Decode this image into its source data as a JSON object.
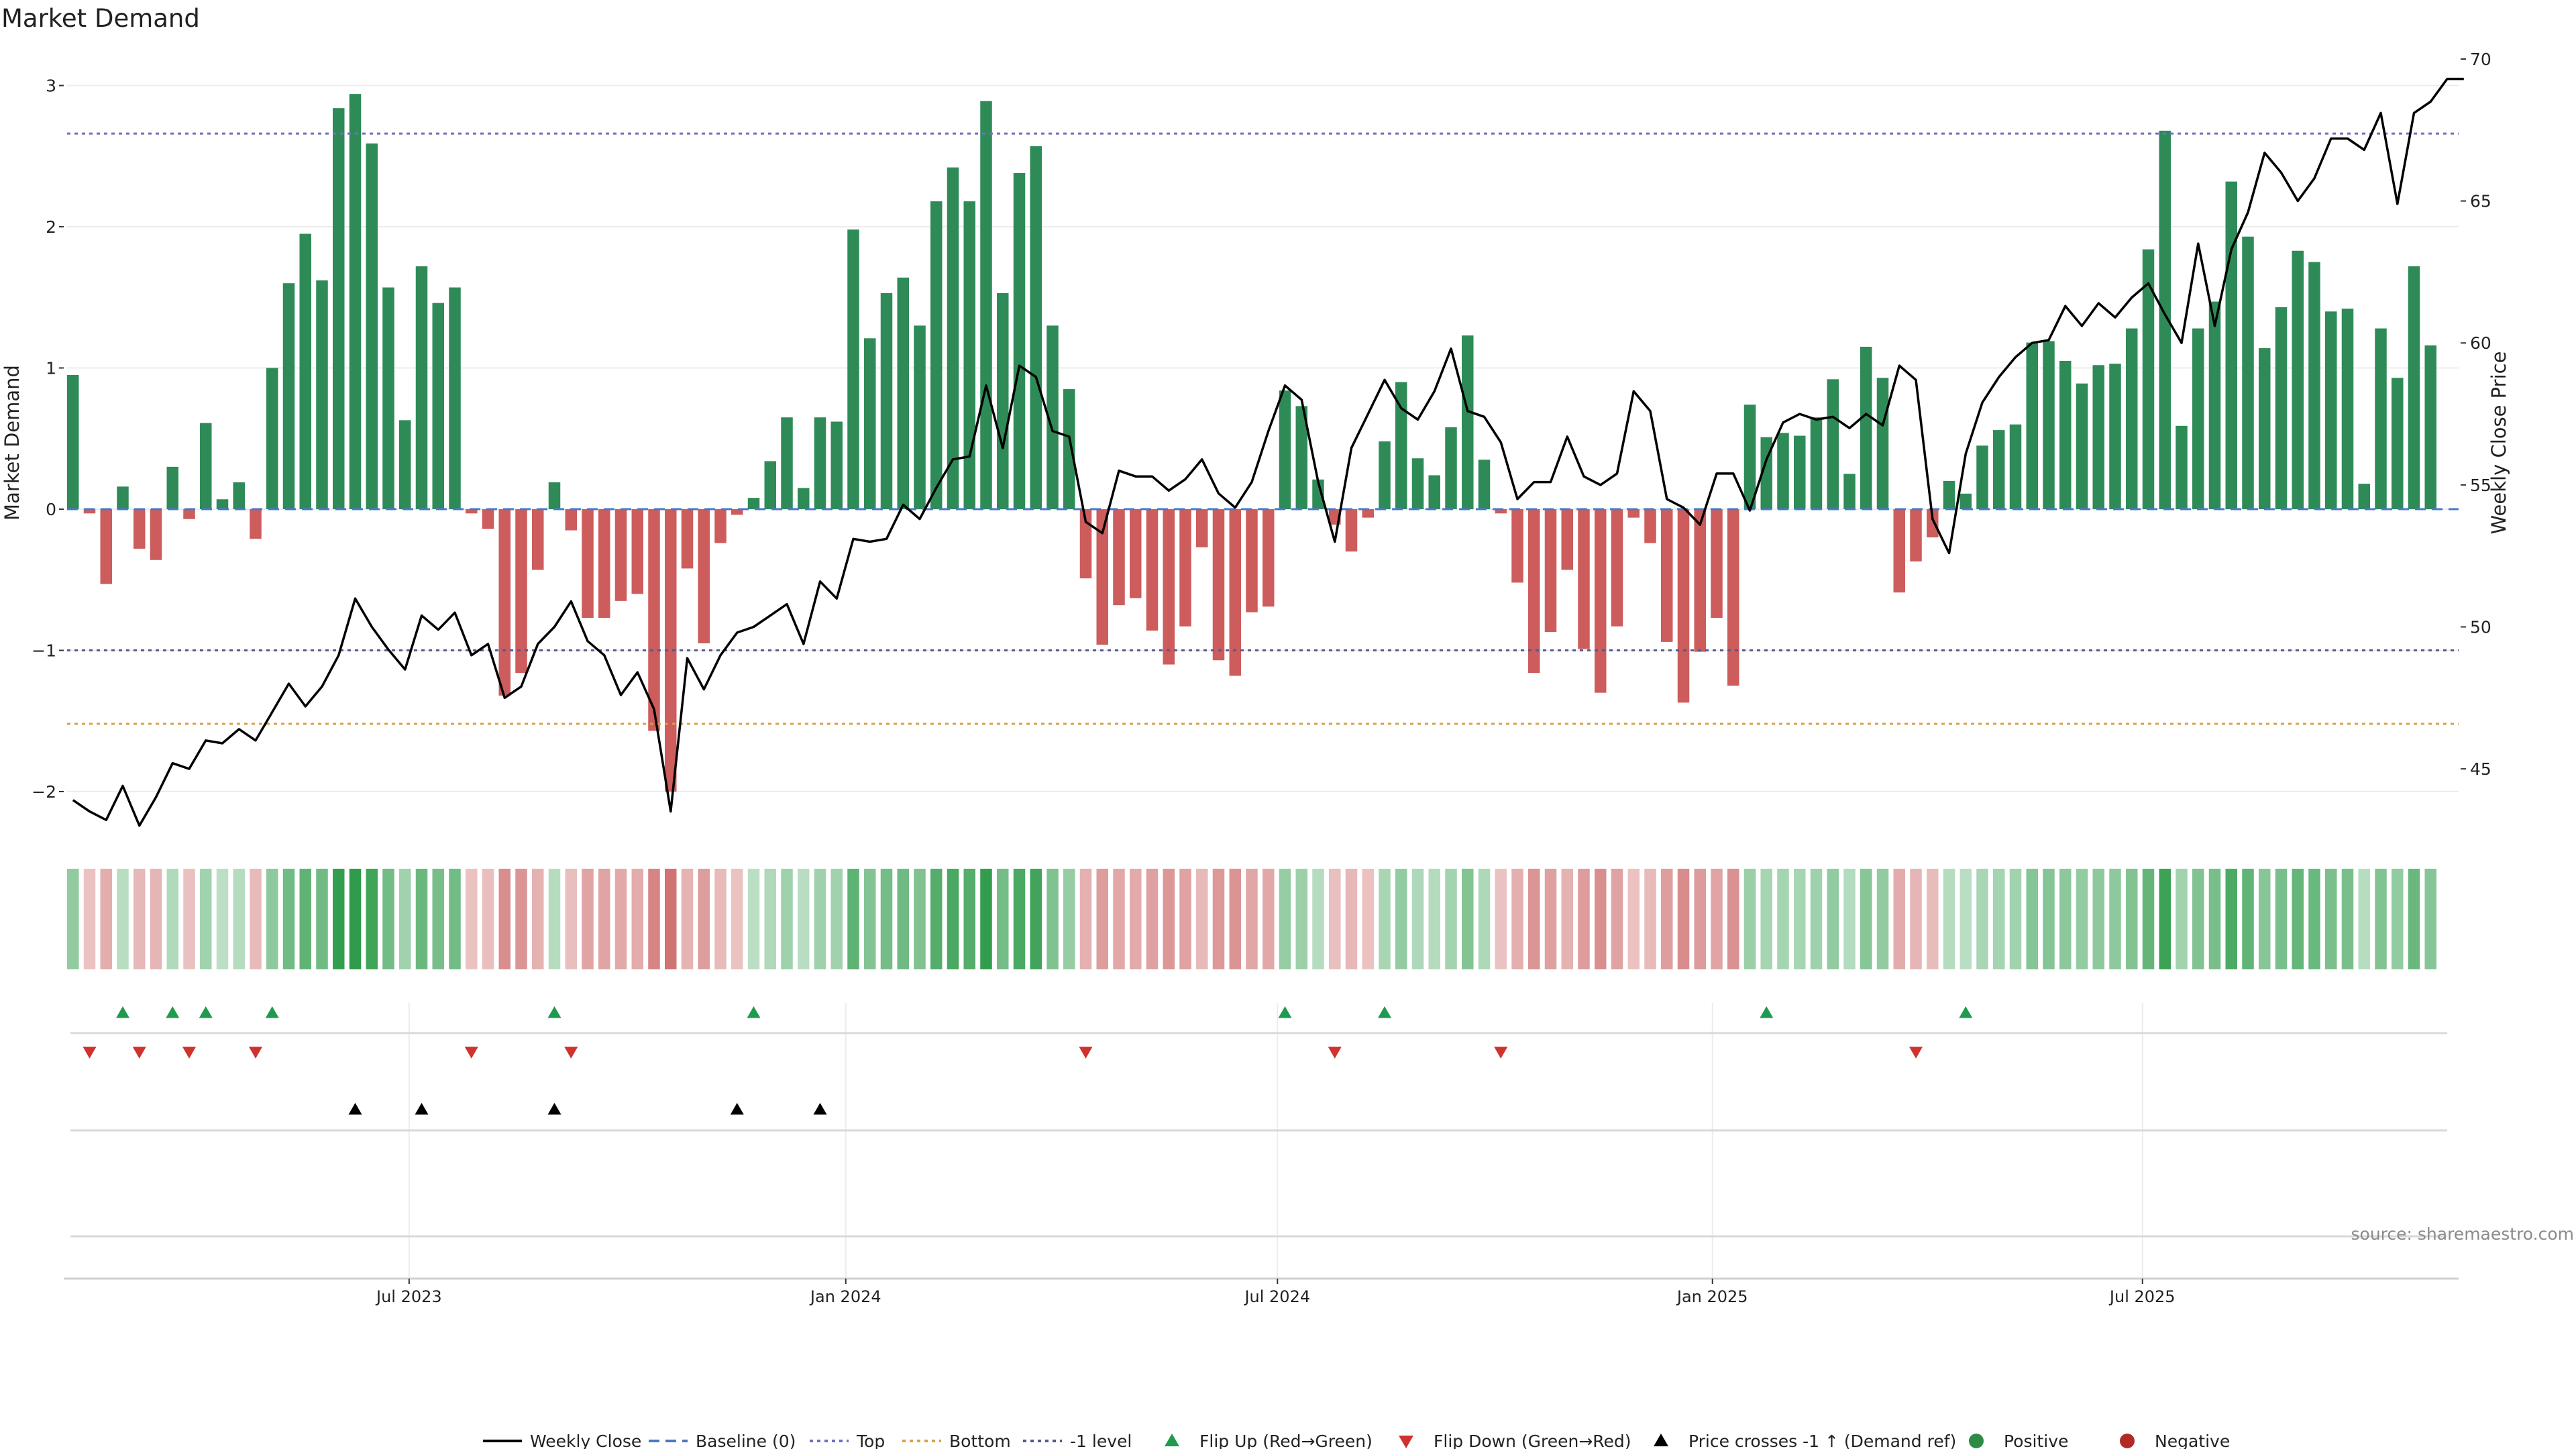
{
  "chart_data": {
    "type": "bar",
    "title": "Market Demand",
    "ylabel": "Market Demand",
    "ylabel_right": "Weekly Close Price",
    "ylim": [
      -2.3,
      3.1
    ],
    "ylim_right": [
      42.9,
      70
    ],
    "y_ticks": [
      {
        "value": 3,
        "label": "3"
      },
      {
        "value": 2,
        "label": "2"
      },
      {
        "value": 1,
        "label": "1"
      },
      {
        "value": 0,
        "label": "0"
      },
      {
        "value": -1,
        "label": "−1"
      },
      {
        "value": -2,
        "label": "−2"
      }
    ],
    "y_right_ticks": [
      {
        "value": 70,
        "label": "70"
      },
      {
        "value": 65,
        "label": "65"
      },
      {
        "value": 60,
        "label": "60"
      },
      {
        "value": 55,
        "label": "55"
      },
      {
        "value": 50,
        "label": "50"
      },
      {
        "value": 45,
        "label": "45"
      }
    ],
    "x_ticks": [
      {
        "index": 20.6,
        "label": "Jul 2023"
      },
      {
        "index": 46.9,
        "label": "Jan 2024"
      },
      {
        "index": 72.9,
        "label": "Jul 2024"
      },
      {
        "index": 99.1,
        "label": "Jan 2025"
      },
      {
        "index": 125.0,
        "label": "Jul 2025"
      }
    ],
    "reference_lines": {
      "baseline": 0,
      "top": 2.66,
      "bottom": -1.52,
      "minus_one": -1
    },
    "series": [
      {
        "name": "Market Demand",
        "axis": "left",
        "values": [
          0.95,
          -0.03,
          -0.53,
          0.16,
          -0.28,
          -0.36,
          0.3,
          -0.07,
          0.61,
          0.07,
          0.19,
          -0.21,
          1.0,
          1.6,
          1.95,
          1.62,
          2.84,
          2.94,
          2.59,
          1.57,
          0.63,
          1.72,
          1.46,
          1.57,
          -0.03,
          -0.14,
          -1.32,
          -1.16,
          -0.43,
          0.19,
          -0.15,
          -0.77,
          -0.77,
          -0.65,
          -0.6,
          -1.57,
          -2.0,
          -0.42,
          -0.95,
          -0.24,
          -0.04,
          0.08,
          0.34,
          0.65,
          0.15,
          0.65,
          0.62,
          1.98,
          1.21,
          1.53,
          1.64,
          1.3,
          2.18,
          2.42,
          2.18,
          2.89,
          1.53,
          2.38,
          2.57,
          1.3,
          0.85,
          -0.49,
          -0.96,
          -0.68,
          -0.63,
          -0.86,
          -1.1,
          -0.83,
          -0.27,
          -1.07,
          -1.18,
          -0.73,
          -0.69,
          0.84,
          0.73,
          0.21,
          -0.11,
          -0.3,
          -0.06,
          0.48,
          0.9,
          0.36,
          0.24,
          0.58,
          1.23,
          0.35,
          -0.03,
          -0.52,
          -1.16,
          -0.87,
          -0.43,
          -0.99,
          -1.3,
          -0.83,
          -0.06,
          -0.24,
          -0.94,
          -1.37,
          -1.01,
          -0.77,
          -1.25,
          0.74,
          0.51,
          0.54,
          0.52,
          0.65,
          0.92,
          0.25,
          1.15,
          0.93,
          -0.59,
          -0.37,
          -0.2,
          0.2,
          0.11,
          0.45,
          0.56,
          0.6,
          1.18,
          1.19,
          1.05,
          0.89,
          1.02,
          1.03,
          1.28,
          1.84,
          2.68,
          0.59,
          1.28,
          1.47,
          2.32,
          1.93,
          1.14,
          1.43,
          1.83,
          1.75,
          1.4,
          1.42,
          0.18,
          1.28,
          0.93,
          1.72,
          1.16
        ]
      },
      {
        "name": "Weekly Close",
        "axis": "right",
        "values": [
          43.9,
          43.5,
          43.2,
          44.4,
          43.0,
          44.0,
          45.2,
          45.0,
          46.0,
          45.9,
          46.4,
          46.0,
          47.0,
          48.0,
          47.2,
          47.9,
          49.0,
          51.0,
          50.0,
          49.2,
          48.5,
          50.4,
          49.9,
          50.5,
          49.0,
          49.4,
          47.5,
          47.9,
          49.4,
          50.0,
          50.9,
          49.5,
          49.0,
          47.6,
          48.4,
          47.1,
          43.5,
          48.9,
          47.8,
          49.0,
          49.8,
          50.0,
          50.4,
          50.8,
          49.4,
          51.6,
          51.0,
          53.1,
          53.0,
          53.1,
          54.3,
          53.8,
          54.9,
          55.9,
          56.0,
          58.5,
          56.3,
          59.2,
          58.8,
          56.9,
          56.7,
          53.7,
          53.3,
          55.5,
          55.3,
          55.3,
          54.8,
          55.2,
          55.9,
          54.7,
          54.2,
          55.1,
          56.9,
          58.5,
          58.0,
          55.1,
          53.0,
          56.3,
          57.5,
          58.7,
          57.7,
          57.3,
          58.3,
          59.8,
          57.6,
          57.4,
          56.5,
          54.5,
          55.1,
          55.1,
          56.7,
          55.3,
          55.0,
          55.4,
          58.3,
          57.6,
          54.5,
          54.2,
          53.6,
          55.4,
          55.4,
          54.1,
          55.9,
          57.2,
          57.5,
          57.3,
          57.4,
          57.0,
          57.5,
          57.1,
          59.2,
          58.7,
          53.8,
          52.6,
          56.1,
          57.9,
          58.8,
          59.5,
          60.0,
          60.1,
          61.3,
          60.6,
          61.4,
          60.9,
          61.6,
          62.1,
          61.0,
          60.0,
          63.5,
          60.6,
          63.3,
          64.6,
          66.7,
          66.0,
          65.0,
          65.8,
          67.2,
          67.2,
          66.8,
          68.1,
          64.9,
          68.1,
          68.5,
          69.3,
          69.3
        ]
      }
    ],
    "demand_strip": {
      "description": "shade per week mirrors Market Demand sign and magnitude"
    },
    "flip_up_indices": [
      3,
      6,
      8,
      12,
      29,
      41,
      73,
      79,
      102,
      114
    ],
    "flip_down_indices": [
      1,
      4,
      7,
      11,
      24,
      30,
      61,
      76,
      86,
      111
    ],
    "price_cross_indices": [
      17,
      21,
      29,
      40,
      45
    ],
    "legend": [
      {
        "label": "Weekly Close",
        "kind": "line",
        "color": "#000000"
      },
      {
        "label": "Baseline (0)",
        "kind": "dash",
        "color": "#4a78c8"
      },
      {
        "label": "Top",
        "kind": "dot",
        "color": "#6d6fc4"
      },
      {
        "label": "Bottom",
        "kind": "dot",
        "color": "#d8a046"
      },
      {
        "label": "-1 level",
        "kind": "dot",
        "color": "#555a8a"
      },
      {
        "label": "Flip Up (Red→Green)",
        "kind": "tri-up",
        "color": "#1f9a4e"
      },
      {
        "label": "Flip Down (Green→Red)",
        "kind": "tri-down",
        "color": "#d0322e"
      },
      {
        "label": "Price crosses -1 ↑ (Demand ref)",
        "kind": "tri-up",
        "color": "#000000"
      },
      {
        "label": "Positive",
        "kind": "circle",
        "color": "#2e8b45"
      },
      {
        "label": "Negative",
        "kind": "circle",
        "color": "#b22a26"
      }
    ],
    "colors": {
      "positive_bar": "#2e8b57",
      "negative_bar": "#cd5c5c",
      "price_line": "#000000",
      "baseline": "#4a78c8",
      "top_line": "#6d6fc4",
      "bottom_line": "#d8a046",
      "minus_one_line": "#555a8a",
      "flip_up": "#1f9a4e",
      "flip_down": "#d0322e",
      "price_cross": "#000000"
    }
  },
  "source_note": "source: sharemaestro.com"
}
